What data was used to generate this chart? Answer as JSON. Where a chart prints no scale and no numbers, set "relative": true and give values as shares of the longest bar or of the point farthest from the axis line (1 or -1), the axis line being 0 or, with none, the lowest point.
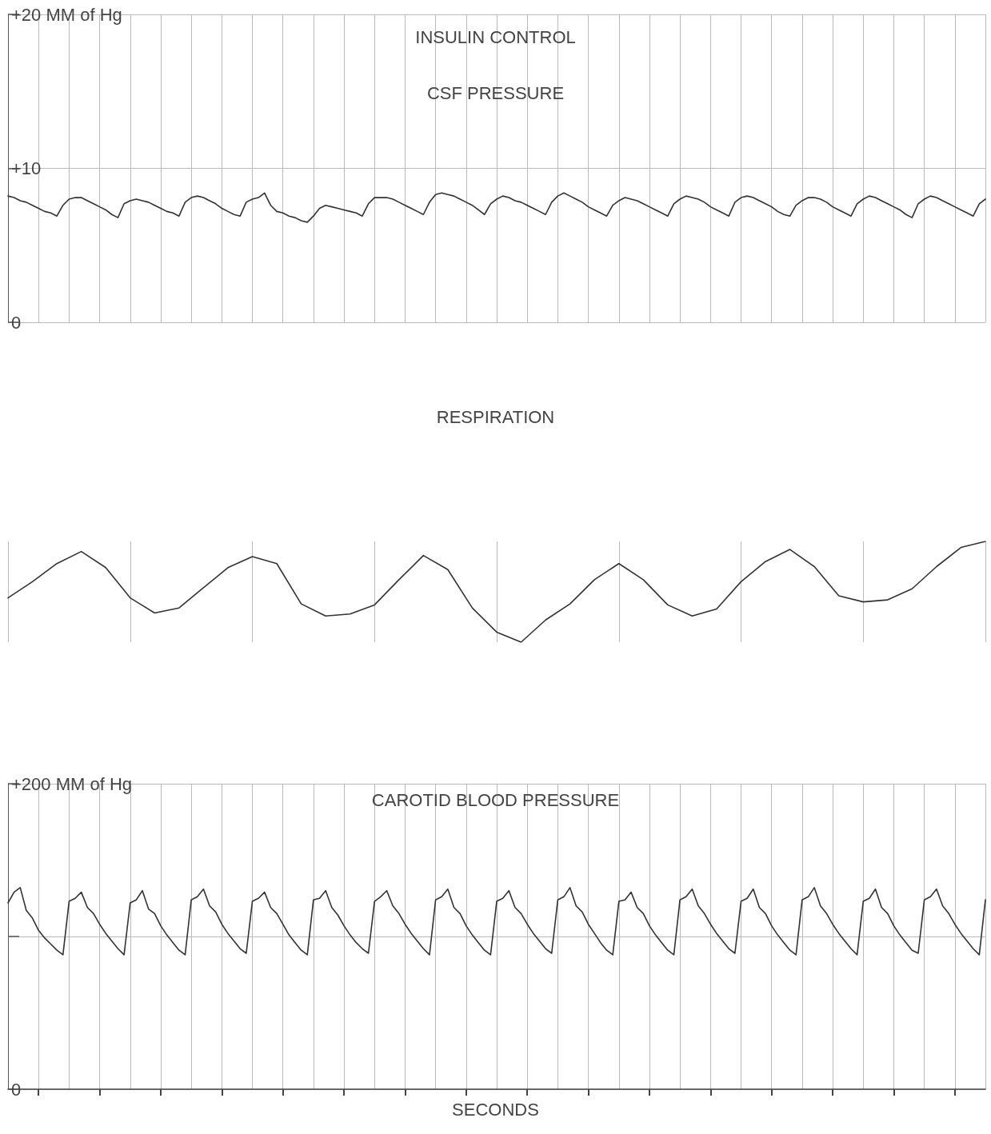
{
  "chart_data": [
    {
      "type": "line",
      "title": "INSULIN CONTROL",
      "subtitle": "CSF PRESSURE",
      "categories": [
        null,
        null,
        null,
        null,
        null,
        null,
        null,
        null,
        null,
        null,
        null,
        null,
        null,
        null,
        null,
        null,
        null,
        null,
        null,
        null,
        null,
        null,
        null,
        null,
        null,
        null,
        null,
        null,
        null,
        null,
        null,
        null,
        null,
        null,
        null,
        null,
        null,
        null,
        null,
        null,
        null,
        null,
        null,
        null,
        null,
        null,
        null,
        null,
        null,
        null,
        null,
        null,
        null,
        null,
        null,
        null,
        null,
        null,
        null,
        null,
        null,
        null,
        null,
        null,
        null,
        null,
        null,
        null,
        null,
        null,
        null,
        null,
        null,
        null,
        null,
        null,
        null,
        null,
        null,
        null,
        null,
        null,
        null,
        null,
        null,
        null,
        null,
        null,
        null,
        null,
        null,
        null,
        null,
        null,
        null,
        null,
        null,
        null,
        null,
        null,
        null,
        null,
        null,
        null,
        null,
        null,
        null,
        null,
        null,
        null,
        null,
        null,
        null,
        null,
        null,
        null,
        null,
        null,
        null,
        null,
        null,
        null,
        null,
        null,
        null,
        null,
        null,
        null,
        null,
        null,
        null,
        null,
        null,
        null,
        null,
        null,
        null,
        null,
        null,
        null,
        null,
        null,
        null,
        null,
        null,
        null,
        null,
        null,
        null,
        null,
        null,
        null,
        null,
        null,
        null,
        null,
        null,
        null,
        null,
        null,
        null
      ],
      "series": [
        {
          "color": "#333333",
          "values": [
            8.2,
            8.1,
            7.9,
            7.8,
            7.6,
            7.4,
            7.2,
            7.1,
            6.9,
            7.6,
            8.0,
            8.1,
            8.1,
            7.9,
            7.7,
            7.5,
            7.3,
            7.0,
            6.8,
            7.7,
            7.9,
            8.0,
            7.9,
            7.8,
            7.6,
            7.4,
            7.2,
            7.1,
            6.9,
            7.8,
            8.1,
            8.2,
            8.1,
            7.9,
            7.7,
            7.4,
            7.2,
            7.0,
            6.9,
            7.8,
            8.0,
            8.1,
            8.4,
            7.6,
            7.2,
            7.1,
            6.9,
            6.8,
            6.6,
            6.5,
            6.9,
            7.4,
            7.6,
            7.5,
            7.4,
            7.3,
            7.2,
            7.1,
            6.9,
            7.7,
            8.1,
            8.1,
            8.1,
            8.0,
            7.8,
            7.6,
            7.4,
            7.2,
            7.0,
            7.8,
            8.3,
            8.4,
            8.3,
            8.2,
            8.0,
            7.8,
            7.6,
            7.3,
            7.0,
            7.7,
            8.0,
            8.2,
            8.1,
            7.9,
            7.8,
            7.6,
            7.4,
            7.2,
            7.0,
            7.8,
            8.2,
            8.4,
            8.2,
            8.0,
            7.8,
            7.5,
            7.3,
            7.1,
            6.9,
            7.6,
            7.9,
            8.1,
            8.0,
            7.9,
            7.7,
            7.5,
            7.3,
            7.1,
            6.9,
            7.7,
            8.0,
            8.2,
            8.1,
            8.0,
            7.8,
            7.5,
            7.3,
            7.1,
            6.9,
            7.8,
            8.1,
            8.2,
            8.1,
            7.9,
            7.7,
            7.5,
            7.2,
            7.0,
            6.9,
            7.6,
            7.9,
            8.1,
            8.1,
            8.0,
            7.8,
            7.5,
            7.3,
            7.1,
            6.9,
            7.7,
            8.0,
            8.2,
            8.1,
            7.9,
            7.7,
            7.5,
            7.3,
            7.0,
            6.8,
            7.7,
            8.0,
            8.2,
            8.1,
            7.9,
            7.7,
            7.5,
            7.3,
            7.1,
            6.9,
            7.7,
            8.0
          ]
        }
      ],
      "ylim": [
        0,
        20
      ],
      "yticks": [
        {
          "value": 0,
          "label": "0"
        },
        {
          "value": 10,
          "label": "+10"
        },
        {
          "value": 20,
          "label": "+20 MM of Hg"
        }
      ],
      "grid": true,
      "marker": "none",
      "line_style": "solid",
      "tick_labels": "y"
    },
    {
      "type": "line",
      "title": "RESPIRATION",
      "relative": true,
      "categories": [
        null,
        null,
        null,
        null,
        null,
        null,
        null,
        null,
        null,
        null,
        null,
        null,
        null,
        null,
        null,
        null,
        null,
        null,
        null,
        null,
        null,
        null,
        null,
        null,
        null,
        null,
        null,
        null,
        null,
        null,
        null,
        null,
        null,
        null,
        null,
        null,
        null,
        null,
        null,
        null,
        null
      ],
      "series": [
        {
          "color": "#333333",
          "values": [
            0.44,
            0.6,
            0.78,
            0.9,
            0.74,
            0.44,
            0.29,
            0.34,
            0.54,
            0.74,
            0.85,
            0.78,
            0.38,
            0.26,
            0.28,
            0.37,
            0.62,
            0.86,
            0.72,
            0.34,
            0.1,
            0.0,
            0.22,
            0.38,
            0.62,
            0.78,
            0.62,
            0.37,
            0.26,
            0.33,
            0.6,
            0.8,
            0.92,
            0.75,
            0.46,
            0.4,
            0.42,
            0.53,
            0.75,
            0.94,
            1.0
          ]
        }
      ],
      "grid": true,
      "marker": "none",
      "line_style": "solid",
      "tick_labels": false
    },
    {
      "type": "line",
      "title": "CAROTID BLOOD PRESSURE",
      "xlabel": "SECONDS",
      "categories": [
        null,
        null,
        null,
        null,
        null,
        null,
        null,
        null,
        null,
        null,
        null,
        null,
        null,
        null,
        null,
        null,
        null,
        null,
        null,
        null,
        null,
        null,
        null,
        null,
        null,
        null,
        null,
        null,
        null,
        null,
        null,
        null,
        null,
        null,
        null,
        null,
        null,
        null,
        null,
        null,
        null,
        null,
        null,
        null,
        null,
        null,
        null,
        null,
        null,
        null,
        null,
        null,
        null,
        null,
        null,
        null,
        null,
        null,
        null,
        null,
        null,
        null,
        null,
        null,
        null,
        null,
        null,
        null,
        null,
        null,
        null,
        null,
        null,
        null,
        null,
        null,
        null,
        null,
        null,
        null,
        null,
        null,
        null,
        null,
        null,
        null,
        null,
        null,
        null,
        null,
        null,
        null,
        null,
        null,
        null,
        null,
        null,
        null,
        null,
        null,
        null,
        null,
        null,
        null,
        null,
        null,
        null,
        null,
        null,
        null,
        null,
        null,
        null,
        null,
        null,
        null,
        null,
        null,
        null,
        null,
        null,
        null,
        null,
        null,
        null,
        null,
        null,
        null,
        null,
        null,
        null,
        null,
        null,
        null,
        null,
        null,
        null,
        null,
        null,
        null,
        null,
        null,
        null,
        null,
        null,
        null,
        null,
        null,
        null,
        null,
        null,
        null,
        null,
        null,
        null,
        null,
        null,
        null,
        null,
        null,
        null
      ],
      "series": [
        {
          "color": "#333333",
          "values": [
            122,
            129,
            132,
            117,
            112,
            104,
            99,
            95,
            91,
            88,
            123,
            125,
            129,
            119,
            115,
            108,
            102,
            97,
            92,
            88,
            122,
            124,
            130,
            118,
            115,
            107,
            101,
            96,
            91,
            88,
            124,
            126,
            131,
            120,
            116,
            108,
            102,
            97,
            92,
            89,
            123,
            125,
            129,
            119,
            115,
            108,
            101,
            96,
            91,
            88,
            124,
            125,
            130,
            119,
            114,
            107,
            101,
            96,
            92,
            89,
            123,
            126,
            130,
            120,
            115,
            108,
            102,
            97,
            92,
            88,
            124,
            126,
            131,
            119,
            115,
            107,
            101,
            96,
            91,
            88,
            123,
            125,
            130,
            119,
            115,
            108,
            102,
            97,
            92,
            89,
            124,
            126,
            132,
            120,
            116,
            108,
            102,
            96,
            91,
            88,
            123,
            124,
            129,
            119,
            115,
            107,
            101,
            96,
            91,
            88,
            124,
            126,
            131,
            120,
            115,
            108,
            102,
            97,
            92,
            89,
            123,
            125,
            131,
            119,
            115,
            107,
            101,
            96,
            91,
            88,
            124,
            126,
            132,
            120,
            115,
            108,
            102,
            97,
            92,
            88,
            123,
            125,
            131,
            119,
            115,
            107,
            101,
            96,
            91,
            89,
            124,
            126,
            131,
            120,
            115,
            108,
            102,
            97,
            92,
            88,
            124
          ]
        }
      ],
      "ylim": [
        0,
        200
      ],
      "yticks": [
        {
          "value": 0,
          "label": "0"
        },
        {
          "value": 100,
          "label": null
        },
        {
          "value": 200,
          "label": "+200 MM of Hg"
        }
      ],
      "grid": true,
      "marker": "none",
      "line_style": "solid",
      "tick_labels": "y"
    }
  ]
}
